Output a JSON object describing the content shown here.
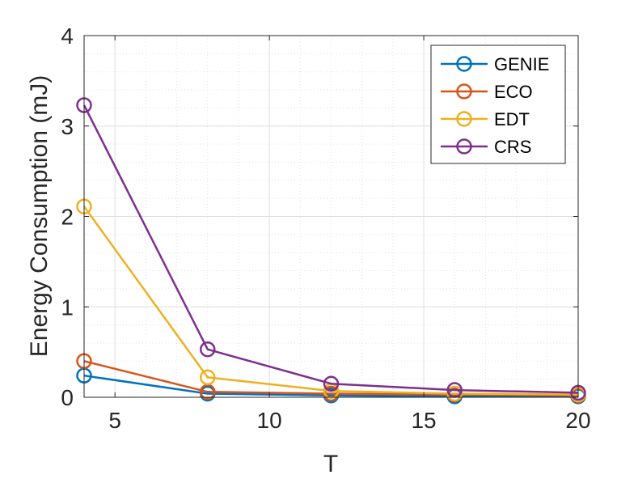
{
  "chart_data": {
    "type": "line",
    "title": "",
    "xlabel": "T",
    "ylabel": "Energy Consumption (mJ)",
    "x": [
      4,
      8,
      12,
      16,
      20
    ],
    "xlim": [
      4,
      20
    ],
    "ylim": [
      0,
      4
    ],
    "xticks": [
      5,
      10,
      15,
      20
    ],
    "yticks": [
      0,
      1,
      2,
      3,
      4
    ],
    "xtick_labels": [
      "5",
      "10",
      "15",
      "20"
    ],
    "ytick_labels": [
      "0",
      "1",
      "2",
      "3",
      "4"
    ],
    "grid": true,
    "minor_grid": true,
    "legend_position": "top-right",
    "series": [
      {
        "name": "GENIE",
        "color": "#0072BD",
        "values": [
          0.24,
          0.04,
          0.02,
          0.01,
          0.01
        ]
      },
      {
        "name": "ECO",
        "color": "#D95319",
        "values": [
          0.4,
          0.06,
          0.04,
          0.03,
          0.02
        ]
      },
      {
        "name": "EDT",
        "color": "#EDB120",
        "values": [
          2.11,
          0.22,
          0.07,
          0.04,
          0.03
        ]
      },
      {
        "name": "CRS",
        "color": "#7E2F8E",
        "values": [
          3.23,
          0.53,
          0.15,
          0.08,
          0.05
        ]
      }
    ]
  }
}
